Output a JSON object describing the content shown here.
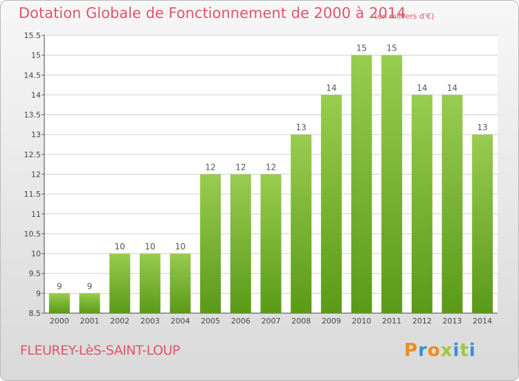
{
  "header": {
    "title": "Dotation Globale de Fonctionnement de 2000 à 2014",
    "unit": "(en milliers d'€)"
  },
  "footer": {
    "commune": "FLEUREY-LèS-SAINT-LOUP",
    "logo_text": "Proxiti"
  },
  "colors": {
    "title": "#e0556b",
    "bar_top": "#99cc4f",
    "bar_bottom": "#5a9a17",
    "grid": "#d0d0d0",
    "logo": [
      "#f08a1c",
      "#3a8fd6",
      "#f08a1c",
      "#9bc83d",
      "#3a8fd6",
      "#9bc83d",
      "#3a8fd6"
    ]
  },
  "chart_data": {
    "type": "bar",
    "title": "Dotation Globale de Fonctionnement de 2000 à 2014",
    "subtitle": "(en milliers d'€)",
    "xlabel": "",
    "ylabel": "",
    "ylim": [
      8.5,
      15.5
    ],
    "yticks": [
      "8.5",
      "9",
      "9.5",
      "10",
      "10.5",
      "11",
      "11.5",
      "12",
      "12.5",
      "13",
      "13.5",
      "14",
      "14.5",
      "15",
      "15.5"
    ],
    "grid": true,
    "categories": [
      "2000",
      "2001",
      "2002",
      "2003",
      "2004",
      "2005",
      "2006",
      "2007",
      "2008",
      "2009",
      "2010",
      "2011",
      "2012",
      "2013",
      "2014"
    ],
    "values": [
      9,
      9,
      10,
      10,
      10,
      12,
      12,
      12,
      13,
      14,
      15,
      15,
      14,
      14,
      13
    ],
    "labels": [
      "9",
      "9",
      "10",
      "10",
      "10",
      "12",
      "12",
      "12",
      "13",
      "14",
      "15",
      "15",
      "14",
      "14",
      "13"
    ]
  }
}
